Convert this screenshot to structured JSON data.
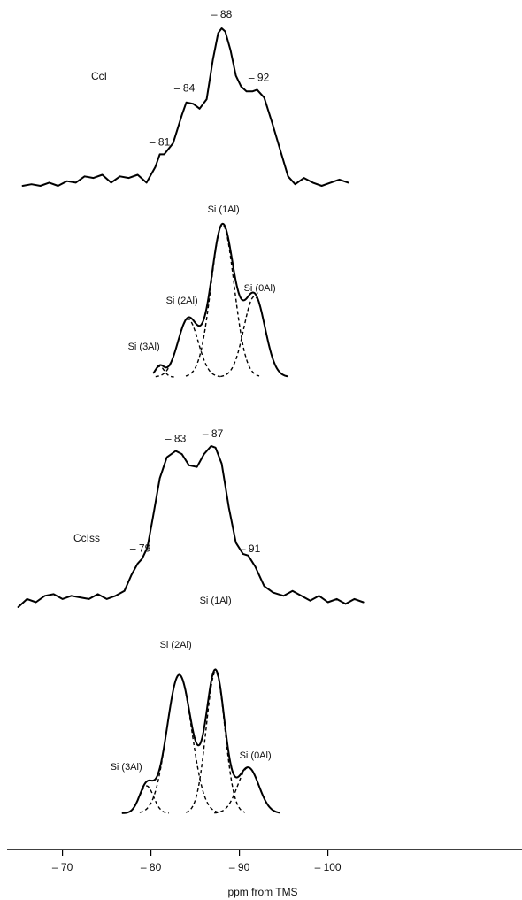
{
  "chart_data": {
    "type": "line",
    "xlabel": "ppm from TMS",
    "x_ticks": [
      -70,
      -80,
      -90,
      -100
    ],
    "x_tick_labels": [
      "– 70",
      "– 80",
      "– 90",
      "– 100"
    ],
    "panels": [
      {
        "label": "CcI",
        "peak_labels": [
          {
            "ppm": -81,
            "text": "– 81"
          },
          {
            "ppm": -84,
            "text": "– 84"
          },
          {
            "ppm": -88,
            "text": "– 88"
          },
          {
            "ppm": -92,
            "text": "– 92"
          }
        ],
        "measured": [
          [
            -65.5,
            0.0
          ],
          [
            -66.5,
            0.01
          ],
          [
            -67.5,
            0.0
          ],
          [
            -68.5,
            0.02
          ],
          [
            -69.5,
            0.0
          ],
          [
            -70.5,
            0.03
          ],
          [
            -71.5,
            0.02
          ],
          [
            -72.5,
            0.06
          ],
          [
            -73.5,
            0.05
          ],
          [
            -74.5,
            0.07
          ],
          [
            -75.5,
            0.02
          ],
          [
            -76.5,
            0.06
          ],
          [
            -77.5,
            0.05
          ],
          [
            -78.5,
            0.07
          ],
          [
            -79.5,
            0.02
          ],
          [
            -80.5,
            0.12
          ],
          [
            -81.0,
            0.2
          ],
          [
            -81.5,
            0.2
          ],
          [
            -82.5,
            0.27
          ],
          [
            -83.5,
            0.45
          ],
          [
            -84.0,
            0.53
          ],
          [
            -84.8,
            0.52
          ],
          [
            -85.5,
            0.49
          ],
          [
            -86.3,
            0.55
          ],
          [
            -87.0,
            0.8
          ],
          [
            -87.6,
            0.97
          ],
          [
            -88.0,
            1.0
          ],
          [
            -88.4,
            0.98
          ],
          [
            -89.0,
            0.86
          ],
          [
            -89.6,
            0.7
          ],
          [
            -90.2,
            0.63
          ],
          [
            -90.8,
            0.6
          ],
          [
            -91.5,
            0.6
          ],
          [
            -92.0,
            0.61
          ],
          [
            -92.8,
            0.56
          ],
          [
            -93.7,
            0.4
          ],
          [
            -94.6,
            0.23
          ],
          [
            -95.5,
            0.06
          ],
          [
            -96.3,
            0.01
          ],
          [
            -97.3,
            0.05
          ],
          [
            -98.3,
            0.02
          ],
          [
            -99.3,
            0.0
          ],
          [
            -100.3,
            0.02
          ],
          [
            -101.3,
            0.04
          ],
          [
            -102.3,
            0.02
          ]
        ],
        "deconvolution": {
          "labels": [
            "Si (3Al)",
            "Si (2Al)",
            "Si (1Al)",
            "Si (0Al)"
          ],
          "components": [
            {
              "label": "Si (3Al)",
              "center": -81.0,
              "height": 0.07,
              "width": 0.5
            },
            {
              "label": "Si (2Al)",
              "center": -84.2,
              "height": 0.38,
              "width": 1.15
            },
            {
              "label": "Si (1Al)",
              "center": -88.1,
              "height": 1.0,
              "width": 1.3
            },
            {
              "label": "Si (0Al)",
              "center": -91.7,
              "height": 0.53,
              "width": 1.2
            }
          ]
        }
      },
      {
        "label": "CcIss",
        "peak_labels": [
          {
            "ppm": -79,
            "text": "– 79"
          },
          {
            "ppm": -83,
            "text": "– 83"
          },
          {
            "ppm": -87,
            "text": "– 87"
          },
          {
            "ppm": -91,
            "text": "– 91"
          }
        ],
        "measured": [
          [
            -65.0,
            0.0
          ],
          [
            -66.0,
            0.05
          ],
          [
            -67.0,
            0.03
          ],
          [
            -68.0,
            0.07
          ],
          [
            -69.0,
            0.08
          ],
          [
            -70.0,
            0.05
          ],
          [
            -71.0,
            0.07
          ],
          [
            -72.0,
            0.06
          ],
          [
            -73.0,
            0.05
          ],
          [
            -74.0,
            0.08
          ],
          [
            -75.0,
            0.05
          ],
          [
            -76.0,
            0.07
          ],
          [
            -77.0,
            0.1
          ],
          [
            -77.8,
            0.2
          ],
          [
            -78.5,
            0.27
          ],
          [
            -79.0,
            0.3
          ],
          [
            -79.6,
            0.37
          ],
          [
            -80.2,
            0.55
          ],
          [
            -81.0,
            0.8
          ],
          [
            -81.8,
            0.93
          ],
          [
            -82.8,
            0.97
          ],
          [
            -83.5,
            0.95
          ],
          [
            -84.3,
            0.88
          ],
          [
            -85.2,
            0.87
          ],
          [
            -86.0,
            0.95
          ],
          [
            -86.8,
            1.0
          ],
          [
            -87.3,
            0.99
          ],
          [
            -88.0,
            0.89
          ],
          [
            -88.8,
            0.62
          ],
          [
            -89.6,
            0.4
          ],
          [
            -90.4,
            0.33
          ],
          [
            -91.0,
            0.32
          ],
          [
            -91.8,
            0.25
          ],
          [
            -92.8,
            0.13
          ],
          [
            -93.8,
            0.09
          ],
          [
            -95.0,
            0.07
          ],
          [
            -96.0,
            0.1
          ],
          [
            -97.0,
            0.07
          ],
          [
            -98.0,
            0.04
          ],
          [
            -99.0,
            0.07
          ],
          [
            -100.0,
            0.03
          ],
          [
            -101.0,
            0.05
          ],
          [
            -102.0,
            0.02
          ],
          [
            -103.0,
            0.05
          ],
          [
            -104.0,
            0.03
          ]
        ],
        "deconvolution": {
          "labels": [
            "Si (3Al)",
            "Si (2Al)",
            "Si (1Al)",
            "Si (0Al)"
          ],
          "components": [
            {
              "label": "Si (3Al)",
              "center": -79.5,
              "height": 0.18,
              "width": 0.8
            },
            {
              "label": "Si (2Al)",
              "center": -83.2,
              "height": 0.91,
              "width": 1.4
            },
            {
              "label": "Si (1Al)",
              "center": -87.3,
              "height": 0.93,
              "width": 1.05
            },
            {
              "label": "Si (0Al)",
              "center": -91.0,
              "height": 0.3,
              "width": 1.2
            }
          ]
        }
      }
    ]
  }
}
